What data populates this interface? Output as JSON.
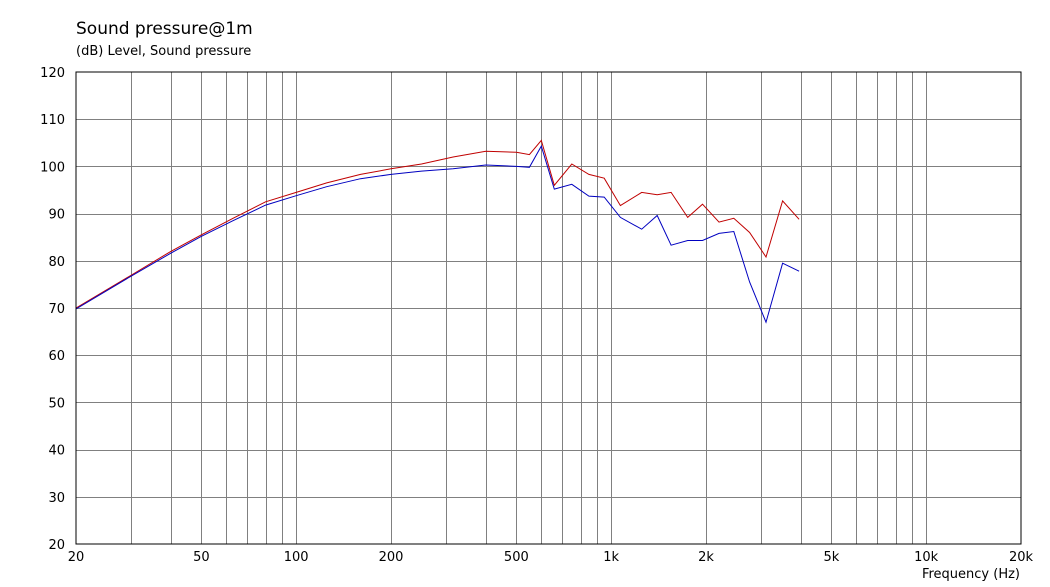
{
  "chart_data": {
    "type": "line",
    "title": "Sound pressure@1m",
    "subtitle": "(dB)  Level, Sound pressure",
    "xlabel": "Frequency  (Hz)",
    "ylabel": "(dB)",
    "xscale": "log",
    "xlim": [
      20,
      20000
    ],
    "ylim": [
      20,
      120
    ],
    "grid": true,
    "legend": "none",
    "x_ticks": [
      {
        "value": 20,
        "label": "20"
      },
      {
        "value": 50,
        "label": "50"
      },
      {
        "value": 100,
        "label": "100"
      },
      {
        "value": 200,
        "label": "200"
      },
      {
        "value": 500,
        "label": "500"
      },
      {
        "value": 1000,
        "label": "1k"
      },
      {
        "value": 2000,
        "label": "2k"
      },
      {
        "value": 5000,
        "label": "5k"
      },
      {
        "value": 10000,
        "label": "10k"
      },
      {
        "value": 20000,
        "label": "20k"
      }
    ],
    "y_ticks": [
      20,
      30,
      40,
      50,
      60,
      70,
      80,
      90,
      100,
      110,
      120
    ],
    "series": [
      {
        "color": "#c00000",
        "x": [
          20,
          30,
          40,
          50,
          63,
          80,
          100,
          125,
          160,
          200,
          250,
          315,
          400,
          500,
          550,
          600,
          660,
          750,
          850,
          950,
          1070,
          1250,
          1400,
          1550,
          1750,
          1950,
          2200,
          2450,
          2750,
          3100,
          3500,
          3950
        ],
        "y": [
          70,
          77,
          82,
          85.5,
          89,
          92.5,
          94.5,
          96.5,
          98.3,
          99.5,
          100.5,
          102,
          103.2,
          103,
          102.5,
          105.5,
          96,
          100.5,
          98.3,
          97.5,
          91.7,
          94.5,
          94,
          94.5,
          89.2,
          92,
          88.2,
          89,
          86,
          80.8,
          92.7,
          88.8
        ]
      },
      {
        "color": "#0000c0",
        "x": [
          20,
          30,
          40,
          50,
          63,
          80,
          100,
          125,
          160,
          200,
          250,
          315,
          400,
          500,
          550,
          600,
          660,
          750,
          850,
          950,
          1070,
          1250,
          1400,
          1550,
          1750,
          1950,
          2200,
          2450,
          2750,
          3100,
          3500,
          3950
        ],
        "y": [
          69.8,
          76.8,
          81.6,
          85.2,
          88.5,
          91.8,
          93.8,
          95.7,
          97.4,
          98.3,
          99,
          99.5,
          100.3,
          100,
          99.8,
          104.3,
          95.2,
          96.2,
          93.7,
          93.5,
          89.2,
          86.7,
          89.6,
          83.3,
          84.3,
          84.3,
          85.8,
          86.2,
          75.5,
          67,
          79.5,
          77.8
        ]
      }
    ]
  }
}
